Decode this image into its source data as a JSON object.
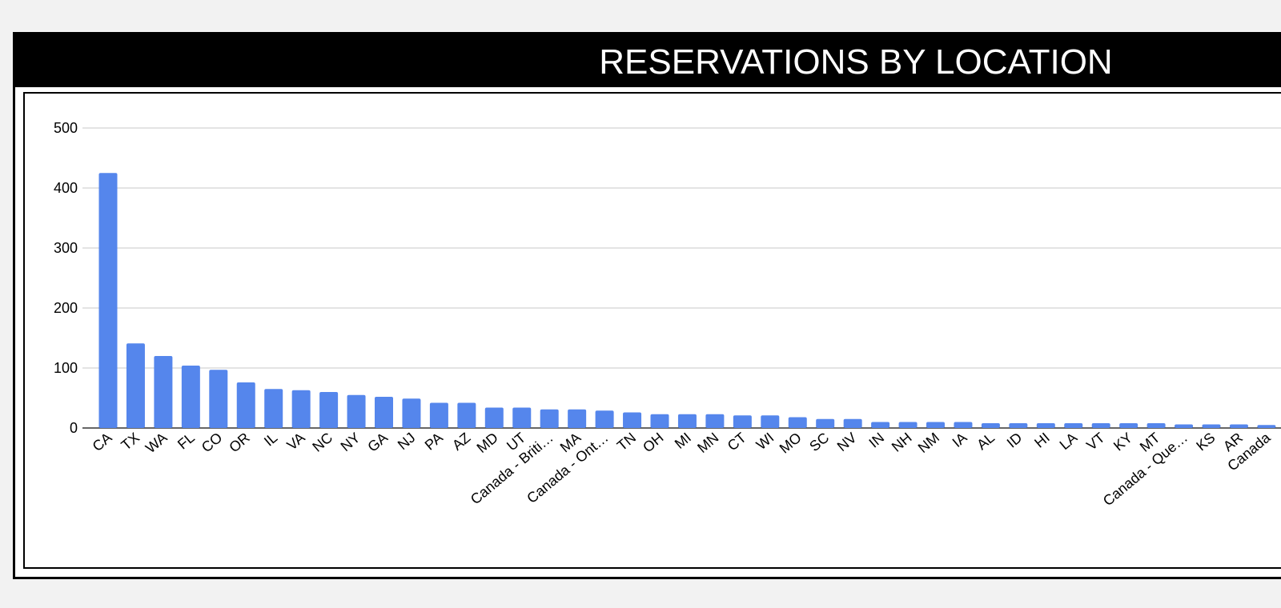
{
  "chart_data": {
    "type": "bar",
    "title": "RESERVATIONS BY LOCATION",
    "xlabel": "",
    "ylabel": "",
    "ylim": [
      0,
      500
    ],
    "yticks": [
      0,
      100,
      200,
      300,
      400,
      500
    ],
    "grid": true,
    "legend": "none",
    "bar_color": "#5586ec",
    "categories": [
      "CA",
      "TX",
      "WA",
      "FL",
      "CO",
      "OR",
      "IL",
      "VA",
      "NC",
      "NY",
      "GA",
      "NJ",
      "PA",
      "AZ",
      "MD",
      "UT",
      "Canada - Briti…",
      "MA",
      "Canada - Ont…",
      "TN",
      "OH",
      "MI",
      "MN",
      "CT",
      "WI",
      "MO",
      "SC",
      "NV",
      "IN",
      "NH",
      "NM",
      "IA",
      "AL",
      "ID",
      "HI",
      "LA",
      "VT",
      "KY",
      "MT",
      "Canada - Que…",
      "KS",
      "AR",
      "Canada"
    ],
    "values": [
      425,
      141,
      120,
      104,
      97,
      76,
      65,
      63,
      60,
      55,
      52,
      49,
      42,
      42,
      34,
      34,
      31,
      31,
      29,
      26,
      23,
      23,
      23,
      21,
      21,
      18,
      15,
      15,
      10,
      10,
      10,
      10,
      8,
      8,
      8,
      8,
      8,
      8,
      8,
      6,
      6,
      6,
      5
    ]
  }
}
